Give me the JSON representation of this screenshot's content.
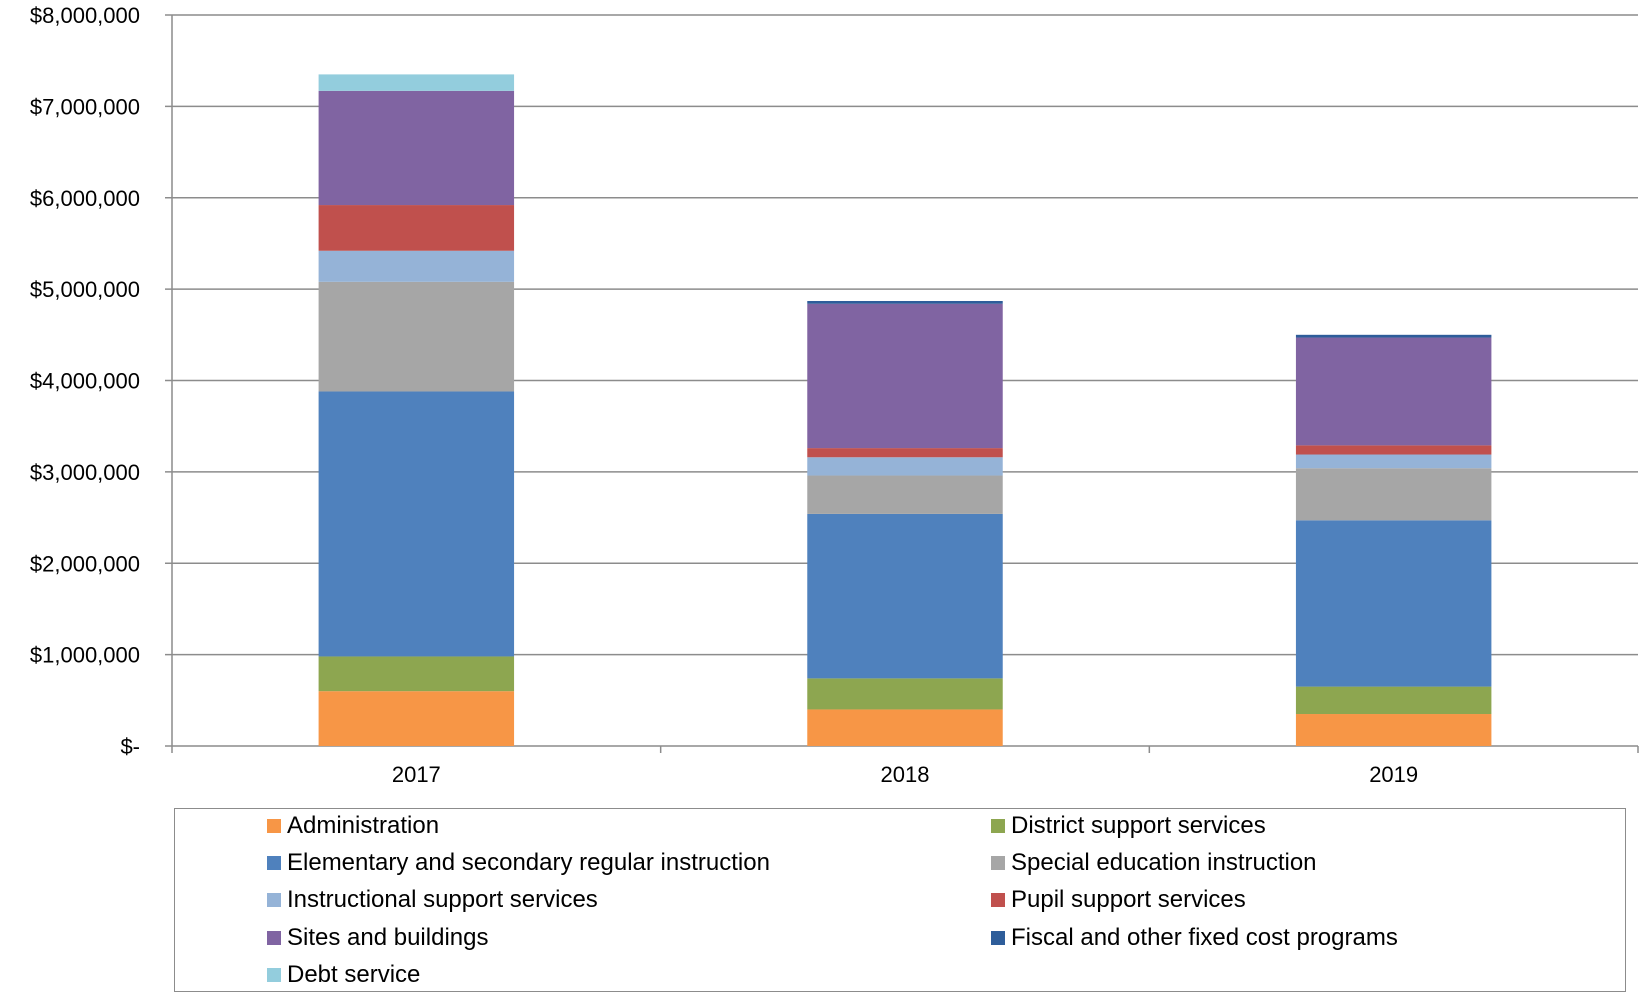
{
  "chart_data": {
    "type": "bar",
    "stacked": true,
    "categories": [
      "2017",
      "2018",
      "2019"
    ],
    "ylim": [
      0,
      8000000
    ],
    "y_ticks": [
      {
        "value": 0,
        "label": "$-"
      },
      {
        "value": 1000000,
        "label": "$1,000,000"
      },
      {
        "value": 2000000,
        "label": "$2,000,000"
      },
      {
        "value": 3000000,
        "label": "$3,000,000"
      },
      {
        "value": 4000000,
        "label": "$4,000,000"
      },
      {
        "value": 5000000,
        "label": "$5,000,000"
      },
      {
        "value": 6000000,
        "label": "$6,000,000"
      },
      {
        "value": 7000000,
        "label": "$7,000,000"
      },
      {
        "value": 8000000,
        "label": "$8,000,000"
      }
    ],
    "grid": true,
    "legend_position": "bottom",
    "series": [
      {
        "name": "Administration",
        "color": "#F79646",
        "values": [
          600000,
          400000,
          350000
        ]
      },
      {
        "name": "District support services",
        "color": "#8DA650",
        "values": [
          380000,
          340000,
          300000
        ]
      },
      {
        "name": "Elementary and secondary regular instruction",
        "color": "#4F81BD",
        "values": [
          2900000,
          1800000,
          1820000
        ]
      },
      {
        "name": "Special education instruction",
        "color": "#A6A6A6",
        "values": [
          1200000,
          420000,
          570000
        ]
      },
      {
        "name": "Instructional support services",
        "color": "#95B3D7",
        "values": [
          340000,
          200000,
          150000
        ]
      },
      {
        "name": "Pupil support services",
        "color": "#C0504D",
        "values": [
          500000,
          100000,
          100000
        ]
      },
      {
        "name": "Sites and buildings",
        "color": "#8064A2",
        "values": [
          1250000,
          1580000,
          1180000
        ]
      },
      {
        "name": "Fiscal and other fixed cost programs",
        "color": "#2E5D9A",
        "values": [
          0,
          30000,
          30000
        ]
      },
      {
        "name": "Debt service",
        "color": "#93CDDD",
        "values": [
          180000,
          0,
          0
        ]
      }
    ]
  }
}
